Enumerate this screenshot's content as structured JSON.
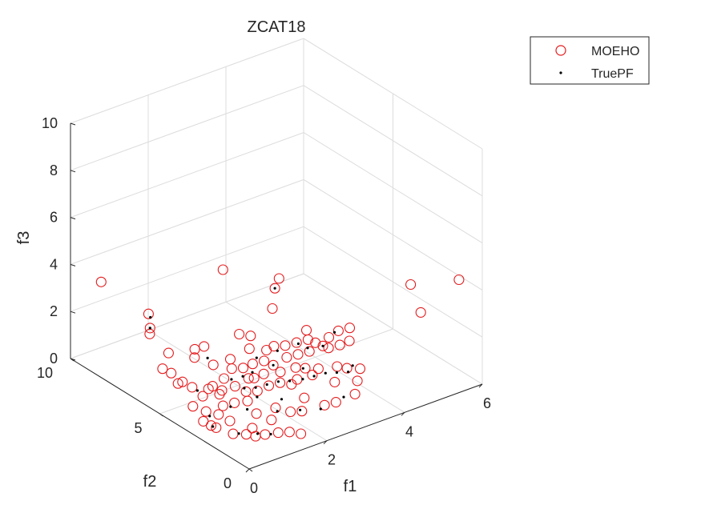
{
  "chart_data": {
    "type": "scatter",
    "title": "ZCAT18",
    "xlabel": "f1",
    "ylabel": "f2",
    "zlabel": "f3",
    "xlim": [
      0,
      6
    ],
    "ylim": [
      0,
      10
    ],
    "zlim": [
      0,
      10
    ],
    "xticks": [
      "0",
      "2",
      "4",
      "6"
    ],
    "yticks": [
      "0",
      "5",
      "10"
    ],
    "zticks": [
      "0",
      "2",
      "4",
      "6",
      "8",
      "10"
    ],
    "grid": true,
    "view": "3d",
    "legend": "top-right",
    "series": [
      {
        "name": "MOEHO",
        "marker": "circle-open",
        "color": "#e41a1c",
        "points": [
          [
            0.1,
            8.5,
            3.9
          ],
          [
            0.2,
            6.0,
            2.8
          ],
          [
            0.3,
            6.2,
            2.9
          ],
          [
            0.1,
            4.2,
            1.6
          ],
          [
            0.2,
            4.8,
            1.7
          ],
          [
            0.3,
            5.5,
            1.5
          ],
          [
            0.4,
            6.5,
            3.3
          ],
          [
            0.3,
            2.5,
            0.4
          ],
          [
            0.4,
            3.0,
            0.2
          ],
          [
            0.5,
            3.5,
            0.5
          ],
          [
            0.2,
            3.0,
            0.5
          ],
          [
            0.3,
            3.8,
            0.7
          ],
          [
            0.6,
            4.5,
            1.0
          ],
          [
            0.5,
            2.8,
            0.7
          ],
          [
            0.7,
            3.8,
            1.2
          ],
          [
            0.8,
            3.2,
            0.7
          ],
          [
            0.6,
            3.9,
            0.9
          ],
          [
            0.9,
            4.0,
            1.1
          ],
          [
            1.0,
            3.7,
            1.0
          ],
          [
            0.7,
            2.6,
            0.4
          ],
          [
            0.8,
            3.4,
            1.1
          ],
          [
            0.8,
            4.8,
            2.0
          ],
          [
            1.0,
            4.7,
            2.4
          ],
          [
            1.1,
            3.8,
            1.4
          ],
          [
            1.2,
            3.4,
            1.2
          ],
          [
            1.3,
            3.0,
            1.1
          ],
          [
            1.3,
            3.8,
            1.7
          ],
          [
            1.4,
            4.1,
            1.9
          ],
          [
            1.5,
            3.6,
            1.7
          ],
          [
            1.6,
            3.2,
            1.4
          ],
          [
            1.7,
            3.5,
            1.8
          ],
          [
            1.8,
            3.9,
            2.2
          ],
          [
            1.9,
            3.3,
            1.9
          ],
          [
            2.0,
            3.0,
            1.8
          ],
          [
            2.1,
            3.6,
            2.1
          ],
          [
            2.2,
            3.4,
            2.3
          ],
          [
            2.3,
            2.9,
            2.0
          ],
          [
            2.4,
            3.2,
            2.3
          ],
          [
            2.5,
            2.7,
            2.1
          ],
          [
            2.6,
            3.0,
            2.4
          ],
          [
            2.7,
            2.5,
            2.2
          ],
          [
            2.8,
            2.8,
            2.5
          ],
          [
            2.9,
            2.6,
            2.4
          ],
          [
            3.0,
            2.4,
            2.3
          ],
          [
            3.1,
            2.3,
            2.2
          ],
          [
            3.2,
            2.5,
            2.5
          ],
          [
            3.3,
            2.1,
            2.3
          ],
          [
            3.4,
            2.4,
            2.7
          ],
          [
            3.5,
            2.0,
            2.4
          ],
          [
            3.6,
            2.2,
            2.8
          ],
          [
            3.0,
            1.6,
            1.8
          ],
          [
            2.8,
            1.3,
            1.4
          ],
          [
            2.5,
            1.9,
            1.6
          ],
          [
            2.2,
            2.1,
            1.5
          ],
          [
            1.9,
            2.4,
            1.4
          ],
          [
            1.7,
            2.6,
            1.3
          ],
          [
            1.5,
            2.8,
            1.1
          ],
          [
            1.2,
            2.2,
            0.6
          ],
          [
            1.4,
            1.8,
            0.4
          ],
          [
            1.6,
            2.0,
            0.7
          ],
          [
            1.8,
            1.6,
            0.6
          ],
          [
            2.0,
            1.4,
            0.6
          ],
          [
            2.2,
            1.7,
            0.9
          ],
          [
            1.1,
            1.5,
            0.1
          ],
          [
            1.0,
            2.0,
            0.2
          ],
          [
            0.9,
            1.6,
            0.1
          ],
          [
            1.3,
            1.2,
            0.2
          ],
          [
            1.5,
            1.0,
            0.2
          ],
          [
            1.7,
            0.8,
            0.1
          ],
          [
            2.4,
            1.0,
            0.8
          ],
          [
            2.6,
            0.8,
            0.9
          ],
          [
            3.0,
            0.6,
            1.1
          ],
          [
            3.2,
            0.9,
            1.4
          ],
          [
            2.7,
            4.2,
            4.5
          ],
          [
            2.5,
            4.0,
            4.3
          ],
          [
            1.9,
            5.6,
            4.7
          ],
          [
            2.3,
            3.7,
            3.7
          ],
          [
            1.6,
            3.4,
            3.1
          ],
          [
            1.4,
            3.6,
            3.2
          ],
          [
            4.6,
            0.4,
            3.7
          ],
          [
            4.8,
            1.4,
            4.3
          ],
          [
            5.4,
            0.0,
            4.8
          ],
          [
            3.3,
            1.7,
            1.5
          ],
          [
            3.5,
            1.4,
            1.5
          ],
          [
            2.9,
            3.1,
            2.7
          ],
          [
            0.6,
            2.2,
            0.1
          ],
          [
            0.8,
            1.9,
            0.1
          ],
          [
            2.0,
            2.6,
            1.7
          ],
          [
            2.3,
            2.4,
            1.8
          ],
          [
            1.1,
            4.4,
            1.7
          ],
          [
            0.9,
            5.0,
            2.2
          ],
          [
            0.5,
            5.6,
            2.0
          ],
          [
            1.5,
            3.3,
            1.4
          ],
          [
            1.8,
            3.1,
            1.5
          ],
          [
            2.1,
            2.2,
            1.3
          ],
          [
            2.5,
            2.3,
            1.7
          ],
          [
            2.7,
            2.0,
            1.7
          ],
          [
            1.2,
            2.7,
            0.9
          ],
          [
            1.0,
            3.0,
            0.8
          ],
          [
            0.4,
            4.6,
            1.3
          ]
        ]
      },
      {
        "name": "TruePF",
        "marker": "dot",
        "color": "#000000",
        "points": [
          [
            0.4,
            6.4,
            3.2
          ],
          [
            0.3,
            6.2,
            2.9
          ],
          [
            2.5,
            4.0,
            4.3
          ],
          [
            3.3,
            2.4,
            2.7
          ],
          [
            3.0,
            2.4,
            2.3
          ],
          [
            2.7,
            2.6,
            2.3
          ],
          [
            2.2,
            3.2,
            2.2
          ],
          [
            1.8,
            3.5,
            2.0
          ],
          [
            1.6,
            3.3,
            1.6
          ],
          [
            1.4,
            3.4,
            1.5
          ],
          [
            1.2,
            3.6,
            1.4
          ],
          [
            1.3,
            3.1,
            1.2
          ],
          [
            1.5,
            2.9,
            1.2
          ],
          [
            1.7,
            2.7,
            1.3
          ],
          [
            1.9,
            2.5,
            1.4
          ],
          [
            2.1,
            2.3,
            1.4
          ],
          [
            2.3,
            2.0,
            1.5
          ],
          [
            2.5,
            1.8,
            1.6
          ],
          [
            2.7,
            1.6,
            1.7
          ],
          [
            2.9,
            1.4,
            1.7
          ],
          [
            3.1,
            1.2,
            1.7
          ],
          [
            1.0,
            1.7,
            0.1
          ],
          [
            1.2,
            1.4,
            0.1
          ],
          [
            0.7,
            2.1,
            0.1
          ],
          [
            0.9,
            3.0,
            0.7
          ],
          [
            0.6,
            4.2,
            1.0
          ],
          [
            1.0,
            4.5,
            2.0
          ],
          [
            2.0,
            1.5,
            0.6
          ],
          [
            2.3,
            1.0,
            0.7
          ],
          [
            2.8,
            0.8,
            1.0
          ],
          [
            3.4,
            1.6,
            1.6
          ],
          [
            2.6,
            2.9,
            2.4
          ],
          [
            2.0,
            3.0,
            1.8
          ],
          [
            1.1,
            2.5,
            0.7
          ],
          [
            0.5,
            3.3,
            0.4
          ],
          [
            0.4,
            2.9,
            0.2
          ],
          [
            1.6,
            1.9,
            0.6
          ],
          [
            1.8,
            2.1,
            0.9
          ],
          [
            2.4,
            2.2,
            1.8
          ],
          [
            1.4,
            2.6,
            1.0
          ]
        ]
      }
    ]
  }
}
